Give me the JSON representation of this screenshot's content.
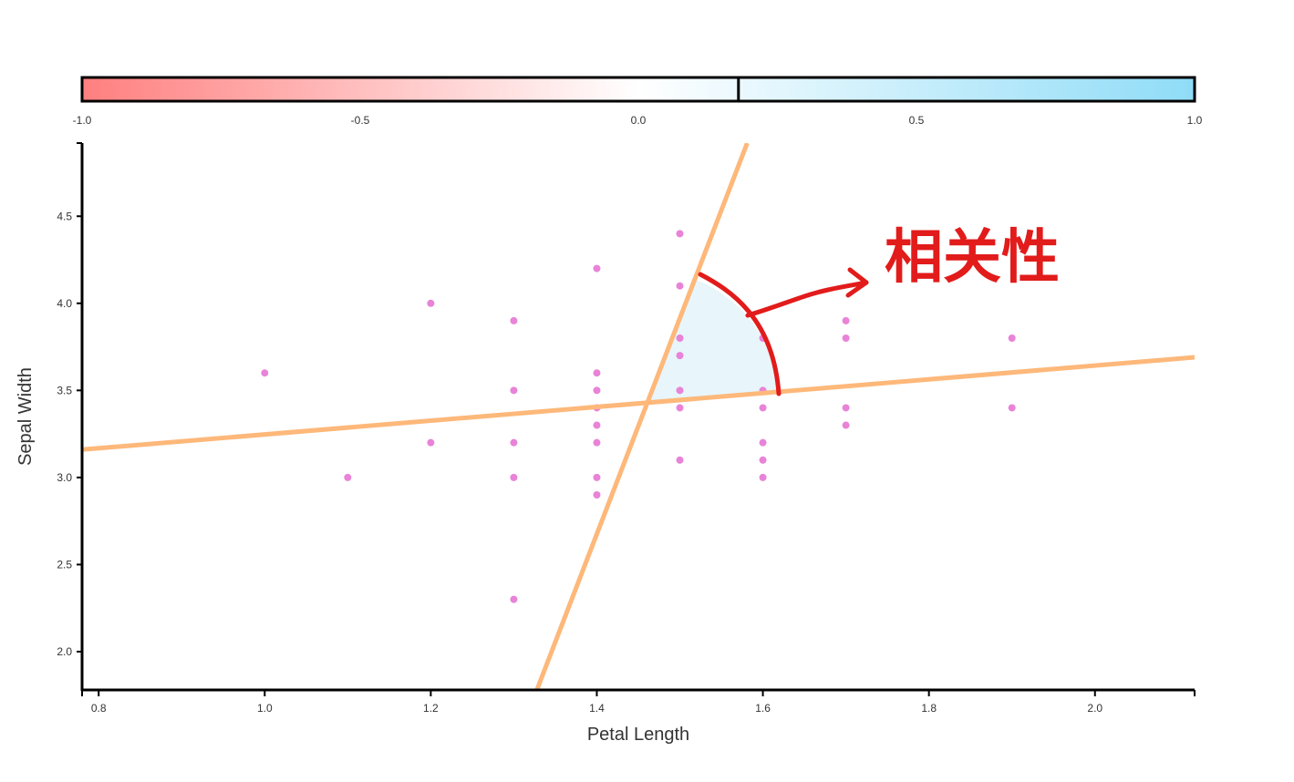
{
  "chart_data": {
    "type": "scatter",
    "xlabel": "Petal Length",
    "ylabel": "Sepal Width",
    "xlim": [
      0.78,
      2.12
    ],
    "ylim": [
      1.78,
      4.92
    ],
    "xticks": [
      "0.8",
      "1.0",
      "1.2",
      "1.4",
      "1.6",
      "1.8",
      "2.0"
    ],
    "yticks": [
      "2.0",
      "2.5",
      "3.0",
      "3.5",
      "4.0",
      "4.5"
    ],
    "points": [
      [
        1.0,
        3.6
      ],
      [
        1.1,
        3.0
      ],
      [
        1.2,
        4.0
      ],
      [
        1.2,
        3.2
      ],
      [
        1.3,
        3.9
      ],
      [
        1.3,
        3.5
      ],
      [
        1.3,
        3.2
      ],
      [
        1.3,
        3.0
      ],
      [
        1.3,
        2.3
      ],
      [
        1.4,
        4.2
      ],
      [
        1.4,
        3.6
      ],
      [
        1.4,
        3.5
      ],
      [
        1.4,
        3.4
      ],
      [
        1.4,
        3.3
      ],
      [
        1.4,
        3.2
      ],
      [
        1.4,
        3.0
      ],
      [
        1.4,
        2.9
      ],
      [
        1.5,
        4.4
      ],
      [
        1.5,
        4.1
      ],
      [
        1.5,
        3.8
      ],
      [
        1.5,
        3.7
      ],
      [
        1.5,
        3.5
      ],
      [
        1.5,
        3.4
      ],
      [
        1.5,
        3.1
      ],
      [
        1.6,
        3.8
      ],
      [
        1.6,
        3.5
      ],
      [
        1.6,
        3.4
      ],
      [
        1.6,
        3.2
      ],
      [
        1.6,
        3.1
      ],
      [
        1.6,
        3.0
      ],
      [
        1.7,
        3.9
      ],
      [
        1.7,
        3.8
      ],
      [
        1.7,
        3.4
      ],
      [
        1.7,
        3.3
      ],
      [
        1.9,
        3.8
      ],
      [
        1.9,
        3.4
      ]
    ],
    "regression_lines": [
      {
        "from": [
          0.78,
          3.16
        ],
        "to": [
          2.12,
          3.69
        ]
      },
      {
        "from": [
          1.3278,
          1.78
        ],
        "to": [
          1.5811,
          4.92
        ]
      }
    ],
    "correlation": 0.18,
    "colorbar": {
      "min": -1.0,
      "max": 1.0,
      "ticks": [
        "-1.0",
        "-0.5",
        "0.0",
        "0.5",
        "1.0"
      ],
      "colors": {
        "negative": "#ff7f7f",
        "zero": "#ffffff",
        "positive": "#8fdcf7"
      }
    },
    "annotation": "相关性",
    "colors": {
      "points": "#e883d8",
      "lines": "#fdb87a",
      "annotation": "#e21b1b",
      "angle_fill": "#e8f5fb"
    }
  }
}
